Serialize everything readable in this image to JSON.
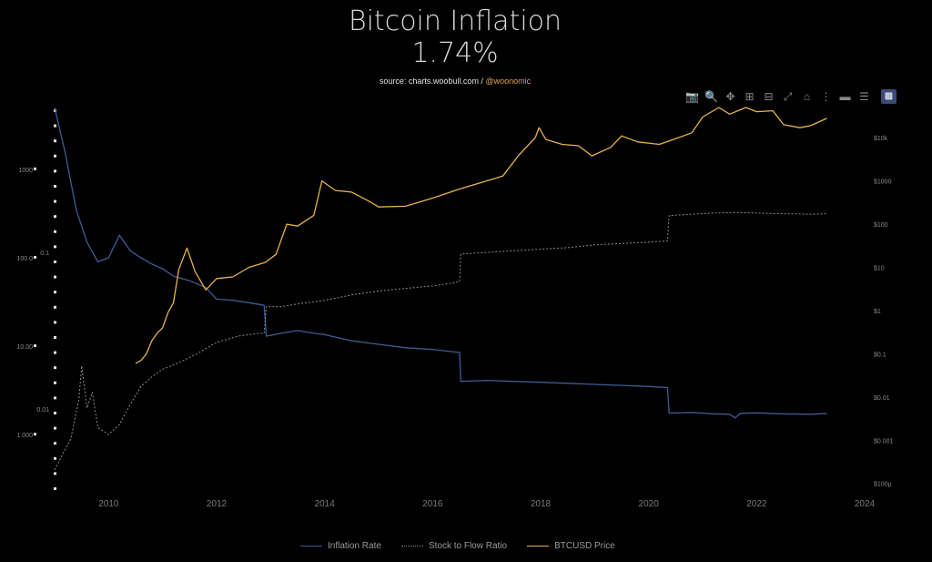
{
  "title_line1": "Bitcoin Inflation",
  "title_line2": "1.74%",
  "source_prefix": "source: charts.woobull.com / ",
  "source_handle": "@woonomic",
  "modebar": [
    "camera-icon",
    "zoom-icon",
    "pan-icon",
    "zoom-in-icon",
    "zoom-out-icon",
    "autoscale-icon",
    "home-icon",
    "spike-lines-icon",
    "hover-closest-icon",
    "hover-compare-icon",
    "plotly-logo-icon"
  ],
  "colors": {
    "inflation": "#3e5c96",
    "s2f": "#8c8c8c",
    "price": "#e8b34c"
  },
  "chart_data": {
    "type": "line",
    "x_ticks": [
      "2010",
      "2012",
      "2014",
      "2016",
      "2018",
      "2020",
      "2022",
      "2024"
    ],
    "x_range": [
      2009.0,
      2024.0
    ],
    "left_axis": {
      "ticks": [
        "1000",
        "100.0",
        "10.00",
        "1.000"
      ],
      "scale": "log",
      "range": [
        0.2,
        5000
      ]
    },
    "mid_axis": {
      "ticks": [
        "0.1",
        "0.01"
      ],
      "scale": "log"
    },
    "right_axis": {
      "ticks": [
        "$10k",
        "$1000",
        "$100",
        "$10",
        "$1",
        "$0.1",
        "$0.01",
        "$0.001",
        "$100μ"
      ],
      "scale": "log",
      "range": [
        5e-05,
        50000
      ]
    },
    "series": [
      {
        "name": "Inflation Rate",
        "axis": "left",
        "x": [
          2009.0,
          2009.2,
          2009.4,
          2009.6,
          2009.8,
          2010.0,
          2010.2,
          2010.4,
          2010.6,
          2010.8,
          2011.0,
          2011.2,
          2011.5,
          2011.8,
          2012.0,
          2012.3,
          2012.6,
          2012.88,
          2012.92,
          2013.2,
          2013.5,
          2013.8,
          2014.0,
          2014.5,
          2015.0,
          2015.5,
          2016.0,
          2016.4,
          2016.5,
          2016.52,
          2017.0,
          2017.5,
          2018.0,
          2018.5,
          2019.0,
          2019.5,
          2020.0,
          2020.35,
          2020.38,
          2020.8,
          2021.2,
          2021.5,
          2021.6,
          2021.7,
          2022.0,
          2022.5,
          2023.0,
          2023.3
        ],
        "y": [
          6000,
          1500,
          350,
          150,
          90,
          100,
          180,
          120,
          100,
          85,
          75,
          62,
          55,
          46,
          34,
          33,
          31,
          29,
          13,
          14,
          15,
          14,
          13.5,
          11.5,
          10.5,
          9.6,
          9.2,
          8.6,
          8.5,
          4.0,
          4.1,
          4.0,
          3.9,
          3.8,
          3.7,
          3.6,
          3.5,
          3.4,
          1.75,
          1.78,
          1.72,
          1.7,
          1.55,
          1.74,
          1.76,
          1.72,
          1.7,
          1.74
        ]
      },
      {
        "name": "Stock to Flow Ratio",
        "axis": "left",
        "x": [
          2009.0,
          2009.15,
          2009.3,
          2009.45,
          2009.5,
          2009.6,
          2009.7,
          2009.8,
          2009.9,
          2010.0,
          2010.2,
          2010.4,
          2010.6,
          2010.8,
          2011.0,
          2011.3,
          2011.6,
          2012.0,
          2012.4,
          2012.8,
          2012.88,
          2012.92,
          2013.2,
          2013.5,
          2014.0,
          2014.5,
          2015.0,
          2015.5,
          2016.0,
          2016.4,
          2016.5,
          2016.52,
          2017.0,
          2017.5,
          2018.0,
          2018.5,
          2019.0,
          2019.5,
          2020.0,
          2020.35,
          2020.38,
          2020.8,
          2021.2,
          2021.6,
          2022.0,
          2022.5,
          2023.0,
          2023.3
        ],
        "y": [
          0.4,
          0.6,
          0.9,
          2.5,
          6,
          2,
          3,
          1.2,
          1.1,
          1.0,
          1.3,
          2.2,
          3.5,
          4.5,
          5.5,
          6.5,
          8,
          11,
          13,
          14,
          14,
          28,
          28,
          30,
          33,
          38,
          42,
          45,
          48,
          52,
          54,
          110,
          115,
          120,
          125,
          130,
          140,
          145,
          150,
          155,
          300,
          310,
          320,
          325,
          320,
          315,
          310,
          315
        ]
      },
      {
        "name": "BTCUSD Price",
        "axis": "right",
        "x": [
          2010.5,
          2010.6,
          2010.7,
          2010.8,
          2010.9,
          2011.0,
          2011.1,
          2011.2,
          2011.3,
          2011.45,
          2011.6,
          2011.8,
          2012.0,
          2012.3,
          2012.6,
          2012.9,
          2013.1,
          2013.3,
          2013.5,
          2013.8,
          2013.95,
          2014.2,
          2014.5,
          2014.8,
          2015.0,
          2015.5,
          2016.0,
          2016.5,
          2017.0,
          2017.3,
          2017.6,
          2017.9,
          2017.97,
          2018.1,
          2018.4,
          2018.7,
          2018.95,
          2019.3,
          2019.5,
          2019.8,
          2020.2,
          2020.5,
          2020.8,
          2021.0,
          2021.3,
          2021.5,
          2021.8,
          2022.0,
          2022.3,
          2022.5,
          2022.8,
          2023.0,
          2023.3
        ],
        "y": [
          0.06,
          0.07,
          0.1,
          0.2,
          0.3,
          0.4,
          0.9,
          1.5,
          9,
          28,
          8,
          3,
          5.5,
          6,
          10,
          13,
          20,
          100,
          90,
          160,
          1000,
          600,
          550,
          350,
          250,
          260,
          400,
          650,
          1000,
          1300,
          4000,
          10000,
          17000,
          9000,
          7000,
          6500,
          3800,
          6000,
          11000,
          8000,
          7000,
          9500,
          13000,
          30000,
          55000,
          35000,
          60000,
          40000,
          42000,
          20000,
          17000,
          19000,
          28000
        ]
      }
    ]
  }
}
